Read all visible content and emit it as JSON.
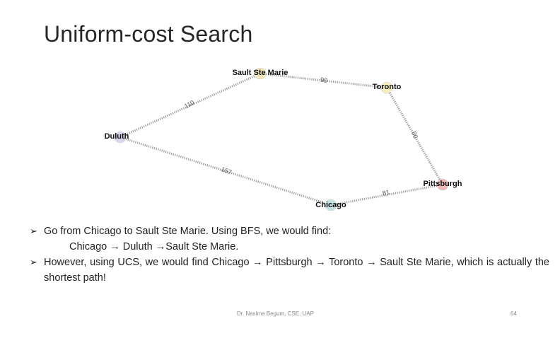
{
  "slide": {
    "title": "Uniform-cost Search"
  },
  "graph": {
    "nodes": [
      {
        "id": "sault",
        "label": "Sault Ste Marie",
        "color": "#f1e4b8"
      },
      {
        "id": "toronto",
        "label": "Toronto",
        "color": "#f6efc0"
      },
      {
        "id": "duluth",
        "label": "Duluth",
        "color": "#d9d6ee"
      },
      {
        "id": "pittsburgh",
        "label": "Pittsburgh",
        "color": "#f2b9bb"
      },
      {
        "id": "chicago",
        "label": "Chicago",
        "color": "#c5e3e1"
      }
    ],
    "edges": [
      {
        "from": "duluth",
        "to": "sault",
        "weight": "110"
      },
      {
        "from": "sault",
        "to": "toronto",
        "weight": "90"
      },
      {
        "from": "toronto",
        "to": "pittsburgh",
        "weight": "80"
      },
      {
        "from": "duluth",
        "to": "chicago",
        "weight": "157"
      },
      {
        "from": "chicago",
        "to": "pittsburgh",
        "weight": "81"
      }
    ]
  },
  "bullets": {
    "marker": "➢",
    "b1": "Go from Chicago to Sault Ste Marie. Using BFS, we would find:",
    "b1_sub": "Chicago → Duluth →Sault Ste Marie.",
    "b2": "However, using UCS, we would  find Chicago → Pittsburgh → Toronto → Sault Ste Marie, which is actually  the shortest path!"
  },
  "footer": {
    "author": "Dr. Nasima Begum, CSE, UAP",
    "page": "64"
  }
}
